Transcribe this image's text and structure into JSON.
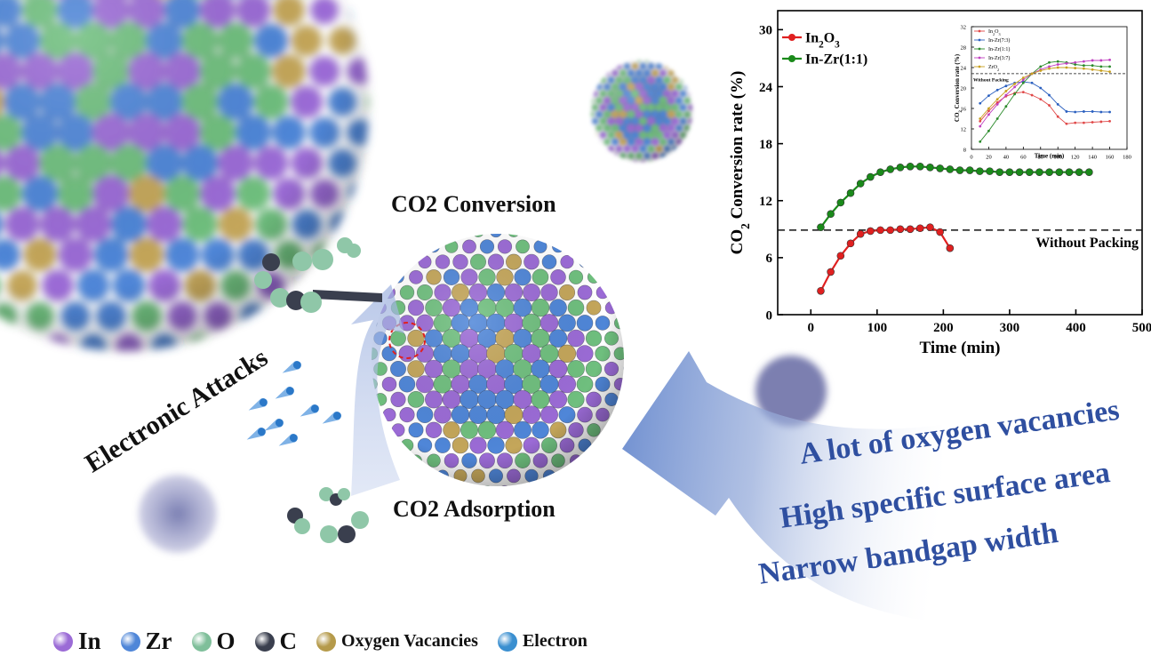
{
  "figure": {
    "labels": {
      "co2_conversion": "CO2 Conversion",
      "co2_adsorption": "CO2 Adsorption",
      "electronic_attacks": "Electronic Attacks"
    },
    "features": [
      "A lot of oxygen vacancies",
      "High specific surface area",
      "Narrow bandgap width"
    ],
    "legend": [
      {
        "label": "In",
        "color": "#9b6bd6"
      },
      {
        "label": "Zr",
        "color": "#4f86d8"
      },
      {
        "label": "O",
        "color": "#7fbf9a"
      },
      {
        "label": "C",
        "color": "#3a3f4e"
      },
      {
        "label": "Oxygen Vacancies",
        "color": "#b59a4a"
      },
      {
        "label": "Electron",
        "color": "#3a8fd0"
      }
    ],
    "atom_colors": {
      "in": "#9b6bd6",
      "zr": "#4f86d8",
      "o": "#6fbf7e",
      "vacancy": "#c4a65a"
    }
  },
  "chart_data": [
    {
      "type": "line",
      "title": "",
      "xlabel": "Time (min)",
      "ylabel": "CO2 Conversion rate (%)",
      "xlim": [
        -50,
        500
      ],
      "ylim": [
        0,
        32
      ],
      "xticks": [
        0,
        100,
        200,
        300,
        400,
        500
      ],
      "yticks": [
        0,
        6,
        12,
        18,
        24,
        30
      ],
      "legend_position": "top-left",
      "reference_line": {
        "label": "Without Packing",
        "y": 8.9,
        "style": "dashed"
      },
      "series": [
        {
          "name": "In2O3",
          "color": "#e02020",
          "x": [
            15,
            30,
            45,
            60,
            75,
            90,
            105,
            120,
            135,
            150,
            165,
            180,
            195,
            210
          ],
          "y": [
            2.5,
            4.5,
            6.2,
            7.5,
            8.5,
            8.8,
            8.9,
            8.9,
            9.0,
            9.0,
            9.1,
            9.2,
            8.7,
            7.0
          ]
        },
        {
          "name": "In-Zr(1:1)",
          "color": "#1a8a1a",
          "x": [
            15,
            30,
            45,
            60,
            75,
            90,
            105,
            120,
            135,
            150,
            165,
            180,
            195,
            210,
            225,
            240,
            255,
            270,
            285,
            300,
            315,
            330,
            345,
            360,
            375,
            390,
            405,
            420
          ],
          "y": [
            9.2,
            10.6,
            11.8,
            12.8,
            13.8,
            14.5,
            15.0,
            15.3,
            15.5,
            15.6,
            15.6,
            15.5,
            15.4,
            15.3,
            15.2,
            15.2,
            15.1,
            15.1,
            15.0,
            15.0,
            15.0,
            15.0,
            15.0,
            15.0,
            15.0,
            15.0,
            15.0,
            15.0
          ]
        }
      ]
    },
    {
      "type": "line",
      "title": "",
      "xlabel": "Time (min)",
      "ylabel": "CO2 Conversion rate (%)",
      "xlim": [
        0,
        180
      ],
      "ylim": [
        8,
        32
      ],
      "xticks": [
        0,
        20,
        40,
        60,
        80,
        100,
        120,
        140,
        160,
        180
      ],
      "yticks": [
        8,
        12,
        16,
        20,
        24,
        28,
        32
      ],
      "legend_position": "top-left",
      "reference_line": {
        "label": "Without Packing",
        "y": 22.8,
        "style": "dashed"
      },
      "series": [
        {
          "name": "In2O3",
          "color": "#e04848",
          "x": [
            10,
            20,
            30,
            40,
            50,
            60,
            70,
            80,
            90,
            100,
            110,
            120,
            130,
            140,
            150,
            160
          ],
          "y": [
            13.5,
            15.5,
            17.2,
            18.4,
            19.0,
            19.2,
            18.6,
            17.8,
            16.6,
            14.4,
            13.0,
            13.2,
            13.2,
            13.3,
            13.4,
            13.5
          ]
        },
        {
          "name": "In-Zr(7:3)",
          "color": "#2a5fbf",
          "x": [
            10,
            20,
            30,
            40,
            50,
            60,
            70,
            80,
            90,
            100,
            110,
            120,
            130,
            140,
            150,
            160
          ],
          "y": [
            17.0,
            18.5,
            19.6,
            20.4,
            21.0,
            21.2,
            21.0,
            20.0,
            18.6,
            16.8,
            15.4,
            15.3,
            15.4,
            15.4,
            15.3,
            15.3
          ]
        },
        {
          "name": "In-Zr(1:1)",
          "color": "#2a8a2a",
          "x": [
            10,
            20,
            30,
            40,
            50,
            60,
            70,
            80,
            90,
            100,
            110,
            120,
            130,
            140,
            150,
            160
          ],
          "y": [
            9.5,
            11.6,
            14.0,
            16.4,
            18.8,
            21.0,
            22.8,
            24.2,
            25.0,
            25.2,
            25.0,
            24.6,
            24.4,
            24.4,
            24.2,
            24.2
          ]
        },
        {
          "name": "In-Zr(3:7)",
          "color": "#c040c0",
          "x": [
            10,
            20,
            30,
            40,
            50,
            60,
            70,
            80,
            90,
            100,
            110,
            120,
            130,
            140,
            150,
            160
          ],
          "y": [
            12.5,
            14.8,
            16.8,
            18.6,
            20.2,
            21.6,
            22.8,
            23.6,
            24.2,
            24.6,
            24.8,
            25.0,
            25.2,
            25.4,
            25.4,
            25.5
          ]
        },
        {
          "name": "ZrO2",
          "color": "#c8a020",
          "x": [
            10,
            20,
            30,
            40,
            50,
            60,
            70,
            80,
            90,
            100,
            110,
            120,
            130,
            140,
            150,
            160
          ],
          "y": [
            14.0,
            16.0,
            17.8,
            19.4,
            20.8,
            22.0,
            22.8,
            23.4,
            23.8,
            24.0,
            24.0,
            23.9,
            23.8,
            23.6,
            23.4,
            23.2
          ]
        }
      ]
    }
  ]
}
